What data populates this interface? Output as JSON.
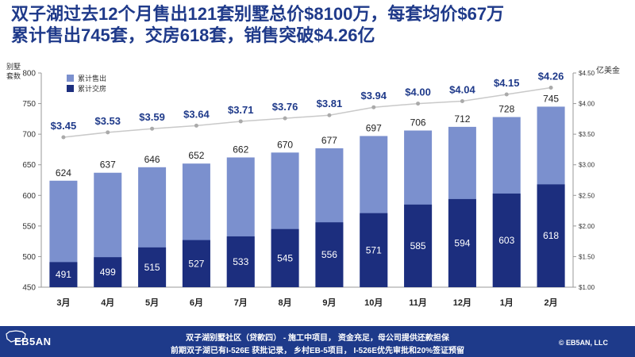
{
  "headline": {
    "line1": "双子湖过去12个月售出121套别墅总价$8100万，每套均价$67万",
    "line2": "累计售出745套，交房618套，销售突破$4.26亿"
  },
  "footer": {
    "logo_text": "EB5AN",
    "line1": "双子湖别墅社区（贷款四） - 施工中项目， 资金充足，母公司提供还款担保",
    "line2": "前期双子湖已有I-526E 获批记录， 乡村EB-5项目， I-526E优先审批和20%签证预留",
    "copyright": "© EB5AN, LLC"
  },
  "chart_data": {
    "type": "bar",
    "categories": [
      "3月",
      "4月",
      "5月",
      "6月",
      "7月",
      "8月",
      "9月",
      "10月",
      "11月",
      "12月",
      "1月",
      "2月"
    ],
    "series": [
      {
        "name": "累计售出",
        "type": "bar",
        "axis": "left",
        "color": "#7b90ce",
        "values": [
          624,
          637,
          646,
          652,
          662,
          670,
          677,
          697,
          706,
          712,
          728,
          745
        ]
      },
      {
        "name": "累计交房",
        "type": "bar",
        "axis": "left",
        "color": "#1c2e7e",
        "values": [
          491,
          499,
          515,
          527,
          533,
          545,
          556,
          571,
          585,
          594,
          603,
          618
        ]
      },
      {
        "name": "",
        "type": "line",
        "axis": "right",
        "color": "#c9c9c9",
        "values": [
          3.45,
          3.53,
          3.59,
          3.64,
          3.71,
          3.76,
          3.81,
          3.94,
          4.0,
          4.04,
          4.15,
          4.26
        ],
        "labels": [
          "$3.45",
          "$3.53",
          "$3.59",
          "$3.64",
          "$3.71",
          "$3.76",
          "$3.81",
          "$3.94",
          "$4.00",
          "$4.04",
          "$4.15",
          "$4.26"
        ]
      }
    ],
    "y_left": {
      "label_line1": "别墅",
      "label_line2": "套数",
      "ylim": [
        450,
        800
      ],
      "ticks": [
        "450",
        "500",
        "550",
        "600",
        "650",
        "700",
        "750",
        "800"
      ]
    },
    "y_right": {
      "label": "亿美金",
      "ylim": [
        1.0,
        4.5
      ],
      "ticks": [
        "$1.00",
        "$1.50",
        "$2.00",
        "$2.50",
        "$3.00",
        "$3.50",
        "$4.00",
        "$4.50"
      ]
    },
    "legend": {
      "placement": "top-left",
      "items": [
        "累计售出",
        "累计交房"
      ]
    },
    "grid": false
  }
}
